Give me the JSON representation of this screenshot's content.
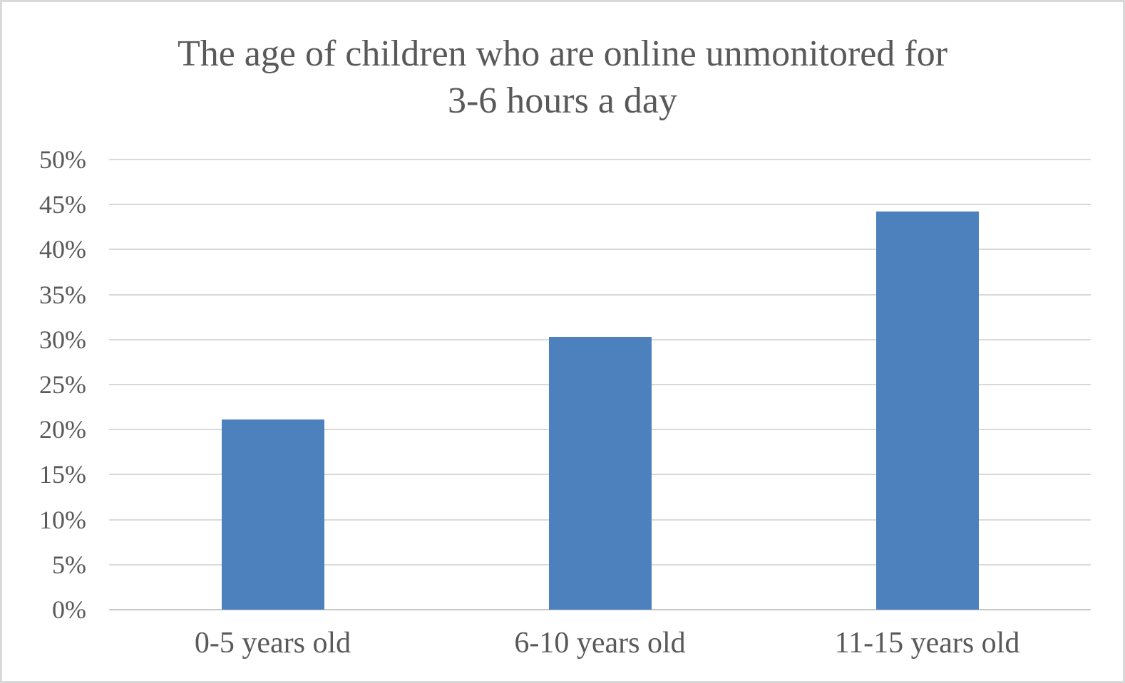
{
  "chart_data": {
    "type": "bar",
    "title": "The age of children who are online unmonitored for 3-6 hours a day",
    "title_lines": [
      "The age of children who are online unmonitored for",
      "3-6 hours a day"
    ],
    "categories": [
      "0-5 years old",
      "6-10 years old",
      "11-15 years old"
    ],
    "values": [
      21.1,
      30.3,
      44.2
    ],
    "unit": "%",
    "xlabel": "",
    "ylabel": "",
    "ylim": [
      0,
      50
    ],
    "ytick_step": 5,
    "ytick_labels": [
      "0%",
      "5%",
      "10%",
      "15%",
      "20%",
      "25%",
      "30%",
      "35%",
      "40%",
      "45%",
      "50%"
    ],
    "grid": true,
    "legend": false,
    "colors": {
      "bar": "#4d81bd",
      "gridline": "#d9d9d9",
      "axis_line": "#c6c6c6",
      "text": "#595959",
      "background": "#ffffff",
      "frame_border": "#d9d9d9"
    }
  }
}
